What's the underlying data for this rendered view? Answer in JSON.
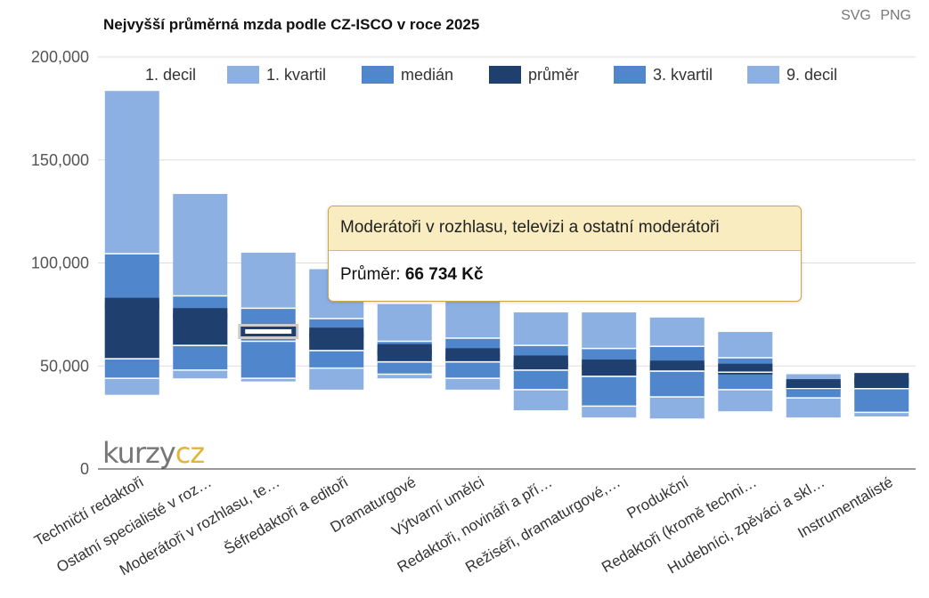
{
  "header": {
    "title": "Nejvyšší průměrná mzda podle CZ-ISCO v roce 2025",
    "export_svg": "SVG",
    "export_png": "PNG"
  },
  "logo": {
    "part1": "kurzy",
    "part2": "cz"
  },
  "tooltip": {
    "title": "Moderátoři v rozhlasu, televizi a ostatní moderátoři",
    "label": "Průměr:",
    "value": "66 734 Kč"
  },
  "colors": {
    "decile_band": "#8db0e2",
    "quartile_band": "#4f86cc",
    "mean": "#1f3f6e",
    "grid": "#dddddd",
    "axis": "#333333"
  },
  "chart_data": {
    "type": "bar",
    "subtype": "stacked-range",
    "title": "Nejvyšší průměrná mzda podle CZ-ISCO v roce 2025",
    "ylim": [
      0,
      200000
    ],
    "yticks": [
      0,
      50000,
      100000,
      150000,
      200000
    ],
    "ytick_labels": [
      "0",
      "50,000",
      "100,000",
      "150,000",
      "200,000"
    ],
    "grid": true,
    "legend_position": "top",
    "legend": [
      {
        "name": "1. decil",
        "color": ""
      },
      {
        "name": "1. kvartil",
        "color": "#8db0e2"
      },
      {
        "name": "medián",
        "color": "#4f86cc"
      },
      {
        "name": "průměr",
        "color": "#1f3f6e"
      },
      {
        "name": "3. kvartil",
        "color": "#4f86cc"
      },
      {
        "name": "9. decil",
        "color": "#8db0e2"
      }
    ],
    "categories": [
      "Techničtí redaktoři",
      "Ostatní specialisté v roz…",
      "Moderátoři v rozhlasu, te…",
      "Šéfredaktoři a editoři",
      "Dramaturgové",
      "Výtvarní umělci",
      "Redaktoři, novináři a pří…",
      "Režiséři, dramaturgové,…",
      "Produkční",
      "Redaktoři (kromě techni…",
      "Hudebníci, zpěváci a skl…",
      "Instrumentalisté"
    ],
    "series": [
      {
        "name": "1. decil",
        "values": [
          36000,
          44000,
          42500,
          38500,
          44000,
          38500,
          28500,
          25000,
          24500,
          28000,
          25000,
          25500
        ]
      },
      {
        "name": "1. kvartil",
        "values": [
          44000,
          48000,
          44000,
          49000,
          46000,
          44000,
          38500,
          30500,
          35000,
          38500,
          34500,
          27500
        ]
      },
      {
        "name": "medián",
        "values": [
          53500,
          60000,
          62000,
          57500,
          52000,
          52000,
          48000,
          45000,
          47500,
          47000,
          39000,
          39000
        ]
      },
      {
        "name": "průměr",
        "values": [
          80500,
          75500,
          66734,
          66000,
          58000,
          56000,
          52500,
          50500,
          50000,
          48500,
          41000,
          44000
        ]
      },
      {
        "name": "3. kvartil",
        "values": [
          104500,
          84000,
          78000,
          73000,
          62000,
          63500,
          60000,
          58500,
          59500,
          54000,
          43000,
          44500
        ]
      },
      {
        "name": "9. decil",
        "values": [
          183500,
          133500,
          105000,
          97000,
          80000,
          82000,
          76000,
          76000,
          73500,
          66500,
          46000,
          46500
        ]
      }
    ],
    "highlighted_index": 2
  }
}
